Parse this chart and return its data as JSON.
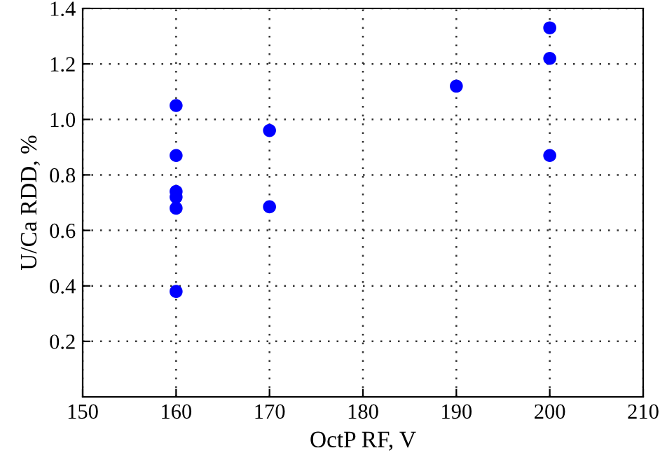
{
  "chart_data": {
    "type": "scatter",
    "xlabel": "OctP RF, V",
    "ylabel": "U/Ca RDD, %",
    "x": [
      160,
      160,
      160,
      160,
      160,
      160,
      170,
      170,
      190,
      200,
      200,
      200
    ],
    "values": [
      1.05,
      0.87,
      0.74,
      0.72,
      0.68,
      0.38,
      0.96,
      0.685,
      1.12,
      1.33,
      1.22,
      0.87
    ],
    "color": "#0000ff",
    "marker": "circle",
    "xlim": [
      150,
      210
    ],
    "xticks": [
      150,
      160,
      170,
      180,
      190,
      200,
      210
    ],
    "ylim": [
      0,
      1.4
    ],
    "yticks": [
      0.2,
      0.4,
      0.6,
      0.8,
      {
        "value": 1.0,
        "label": "1.0"
      },
      1.2,
      1.4
    ],
    "grid": true,
    "legend": false
  }
}
